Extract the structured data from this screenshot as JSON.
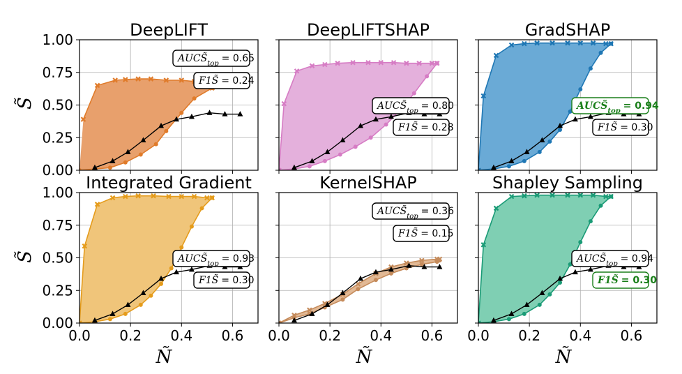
{
  "figure": {
    "xlabel": "Ñ",
    "ylabel": "S̃",
    "x_ticks": [
      "0.0",
      "0.2",
      "0.4",
      "0.6"
    ],
    "y_ticks": [
      "0.00",
      "0.25",
      "0.50",
      "0.75",
      "1.00"
    ],
    "highlight_color": "#1a7f1a",
    "reference_series_color": "#000000"
  },
  "chart_data": [
    {
      "type": "line",
      "title": "DeepLIFT",
      "color": "#e07b2a",
      "fill_color": "#e8a06c",
      "xlim": [
        0,
        0.7
      ],
      "ylim": [
        0,
        1
      ],
      "grid": true,
      "reference": {
        "x": [
          0.06,
          0.13,
          0.19,
          0.25,
          0.32,
          0.38,
          0.44,
          0.51,
          0.57,
          0.63
        ],
        "y": [
          0.02,
          0.07,
          0.14,
          0.23,
          0.34,
          0.39,
          0.41,
          0.44,
          0.43,
          0.43
        ]
      },
      "upper": {
        "x": [
          0.015,
          0.07,
          0.14,
          0.18,
          0.23,
          0.28,
          0.34,
          0.4,
          0.45,
          0.5,
          0.52
        ],
        "y": [
          0.39,
          0.65,
          0.69,
          0.695,
          0.7,
          0.7,
          0.69,
          0.69,
          0.68,
          0.66,
          0.63
        ]
      },
      "lower": {
        "x": [
          0.0,
          0.06,
          0.12,
          0.18,
          0.24,
          0.3,
          0.34,
          0.4,
          0.45,
          0.52
        ],
        "y": [
          0.0,
          0.01,
          0.02,
          0.06,
          0.12,
          0.2,
          0.3,
          0.44,
          0.55,
          0.63
        ]
      },
      "metric_label": "AUCS̃",
      "metric_sub": "top",
      "metric_value": "= 0.65",
      "metric_highlight": false,
      "f1_label": "F1S̃",
      "f1_value": "= 0.24",
      "f1_highlight": false,
      "box_position": "upper-right"
    },
    {
      "type": "line",
      "title": "DeepLIFTSHAP",
      "color": "#d67cc4",
      "fill_color": "#e4b0dc",
      "xlim": [
        0,
        0.7
      ],
      "ylim": [
        0,
        1
      ],
      "grid": true,
      "reference": {
        "x": [
          0.06,
          0.13,
          0.19,
          0.25,
          0.32,
          0.38,
          0.44,
          0.51,
          0.57,
          0.63
        ],
        "y": [
          0.02,
          0.07,
          0.14,
          0.23,
          0.34,
          0.39,
          0.41,
          0.44,
          0.43,
          0.43
        ]
      },
      "upper": {
        "x": [
          0.0,
          0.02,
          0.07,
          0.13,
          0.18,
          0.23,
          0.29,
          0.35,
          0.4,
          0.45,
          0.5,
          0.55,
          0.6,
          0.62
        ],
        "y": [
          0.0,
          0.51,
          0.76,
          0.8,
          0.81,
          0.82,
          0.825,
          0.825,
          0.825,
          0.825,
          0.82,
          0.82,
          0.82,
          0.82
        ]
      },
      "lower": {
        "x": [
          0.0,
          0.06,
          0.12,
          0.18,
          0.24,
          0.3,
          0.36,
          0.42,
          0.48,
          0.53,
          0.58,
          0.62
        ],
        "y": [
          0.0,
          0.01,
          0.03,
          0.07,
          0.12,
          0.18,
          0.25,
          0.35,
          0.47,
          0.59,
          0.72,
          0.82
        ]
      },
      "metric_label": "AUCS̃",
      "metric_sub": "top",
      "metric_value": "= 0.80",
      "metric_highlight": false,
      "f1_label": "F1S̃",
      "f1_value": "= 0.28",
      "f1_highlight": false,
      "box_position": "center-right"
    },
    {
      "type": "line",
      "title": "GradSHAP",
      "color": "#1f77b4",
      "fill_color": "#6aaad6",
      "xlim": [
        0,
        0.7
      ],
      "ylim": [
        0,
        1
      ],
      "grid": true,
      "reference": {
        "x": [
          0.06,
          0.13,
          0.19,
          0.25,
          0.32,
          0.38,
          0.44,
          0.51,
          0.57,
          0.63
        ],
        "y": [
          0.02,
          0.07,
          0.14,
          0.23,
          0.34,
          0.39,
          0.41,
          0.44,
          0.43,
          0.43
        ]
      },
      "upper": {
        "x": [
          0.0,
          0.02,
          0.07,
          0.13,
          0.18,
          0.23,
          0.29,
          0.35,
          0.4,
          0.45,
          0.5,
          0.52
        ],
        "y": [
          0.0,
          0.57,
          0.88,
          0.96,
          0.97,
          0.975,
          0.975,
          0.975,
          0.975,
          0.975,
          0.97,
          0.97
        ]
      },
      "lower": {
        "x": [
          0.0,
          0.06,
          0.12,
          0.18,
          0.24,
          0.28,
          0.32,
          0.36,
          0.4,
          0.44,
          0.48,
          0.52
        ],
        "y": [
          0.0,
          0.01,
          0.03,
          0.07,
          0.14,
          0.22,
          0.31,
          0.45,
          0.62,
          0.78,
          0.9,
          0.97
        ]
      },
      "metric_label": "AUCS̃",
      "metric_sub": "top",
      "metric_value": "= 0.94",
      "metric_highlight": true,
      "f1_label": "F1S̃",
      "f1_value": "= 0.30",
      "f1_highlight": false,
      "box_position": "center-right"
    },
    {
      "type": "line",
      "title": "Integrated Gradient",
      "color": "#e59c1c",
      "fill_color": "#f0c57a",
      "xlim": [
        0,
        0.7
      ],
      "ylim": [
        0,
        1
      ],
      "grid": true,
      "reference": {
        "x": [
          0.06,
          0.13,
          0.19,
          0.25,
          0.32,
          0.38,
          0.44,
          0.51,
          0.57,
          0.63
        ],
        "y": [
          0.02,
          0.07,
          0.14,
          0.23,
          0.34,
          0.39,
          0.41,
          0.44,
          0.43,
          0.43
        ]
      },
      "upper": {
        "x": [
          0.0,
          0.02,
          0.07,
          0.13,
          0.18,
          0.23,
          0.29,
          0.35,
          0.4,
          0.45,
          0.5,
          0.52
        ],
        "y": [
          0.0,
          0.59,
          0.91,
          0.96,
          0.97,
          0.975,
          0.975,
          0.97,
          0.97,
          0.97,
          0.96,
          0.96
        ]
      },
      "lower": {
        "x": [
          0.0,
          0.06,
          0.12,
          0.18,
          0.24,
          0.28,
          0.32,
          0.36,
          0.4,
          0.44,
          0.48,
          0.52
        ],
        "y": [
          0.0,
          0.01,
          0.03,
          0.07,
          0.14,
          0.21,
          0.3,
          0.42,
          0.58,
          0.74,
          0.88,
          0.96
        ]
      },
      "metric_label": "AUCS̃",
      "metric_sub": "top",
      "metric_value": "= 0.93",
      "metric_highlight": false,
      "f1_label": "F1S̃",
      "f1_value": "= 0.30",
      "f1_highlight": false,
      "box_position": "center-right"
    },
    {
      "type": "line",
      "title": "KernelSHAP",
      "color": "#c58b5b",
      "fill_color": "#e2b995",
      "xlim": [
        0,
        0.7
      ],
      "ylim": [
        0,
        1
      ],
      "grid": true,
      "reference": {
        "x": [
          0.06,
          0.13,
          0.19,
          0.25,
          0.32,
          0.38,
          0.44,
          0.51,
          0.57,
          0.63
        ],
        "y": [
          0.02,
          0.07,
          0.14,
          0.23,
          0.34,
          0.39,
          0.41,
          0.44,
          0.43,
          0.43
        ]
      },
      "upper": {
        "x": [
          0.0,
          0.06,
          0.12,
          0.18,
          0.25,
          0.31,
          0.38,
          0.44,
          0.5,
          0.56,
          0.62,
          0.63
        ],
        "y": [
          0.0,
          0.06,
          0.1,
          0.15,
          0.22,
          0.3,
          0.38,
          0.43,
          0.46,
          0.48,
          0.49,
          0.49
        ]
      },
      "lower": {
        "x": [
          0.0,
          0.06,
          0.12,
          0.18,
          0.25,
          0.31,
          0.38,
          0.44,
          0.5,
          0.56,
          0.62,
          0.63
        ],
        "y": [
          0.0,
          0.04,
          0.07,
          0.12,
          0.18,
          0.26,
          0.33,
          0.38,
          0.42,
          0.45,
          0.47,
          0.48
        ]
      },
      "metric_label": "AUCS̃",
      "metric_sub": "top",
      "metric_value": "= 0.36",
      "metric_highlight": false,
      "f1_label": "F1S̃",
      "f1_value": "= 0.15",
      "f1_highlight": false,
      "box_position": "upper-right"
    },
    {
      "type": "line",
      "title": "Shapley Sampling",
      "color": "#1a9b76",
      "fill_color": "#7fcfb3",
      "xlim": [
        0,
        0.7
      ],
      "ylim": [
        0,
        1
      ],
      "grid": true,
      "reference": {
        "x": [
          0.06,
          0.13,
          0.19,
          0.25,
          0.32,
          0.38,
          0.44,
          0.51,
          0.57,
          0.63
        ],
        "y": [
          0.02,
          0.07,
          0.14,
          0.23,
          0.34,
          0.39,
          0.41,
          0.44,
          0.43,
          0.43
        ]
      },
      "upper": {
        "x": [
          0.0,
          0.02,
          0.07,
          0.13,
          0.18,
          0.23,
          0.29,
          0.35,
          0.4,
          0.45,
          0.5,
          0.52
        ],
        "y": [
          0.0,
          0.6,
          0.88,
          0.97,
          0.975,
          0.98,
          0.98,
          0.98,
          0.98,
          0.98,
          0.97,
          0.97
        ]
      },
      "lower": {
        "x": [
          0.0,
          0.06,
          0.12,
          0.18,
          0.24,
          0.28,
          0.32,
          0.36,
          0.4,
          0.44,
          0.48,
          0.52
        ],
        "y": [
          0.0,
          0.01,
          0.03,
          0.07,
          0.14,
          0.22,
          0.31,
          0.45,
          0.62,
          0.78,
          0.9,
          0.97
        ]
      },
      "metric_label": "AUCS̃",
      "metric_sub": "top",
      "metric_value": "= 0.94",
      "metric_highlight": false,
      "f1_label": "F1S̃",
      "f1_value": "= 0.30",
      "f1_highlight": true,
      "box_position": "center-right"
    }
  ]
}
